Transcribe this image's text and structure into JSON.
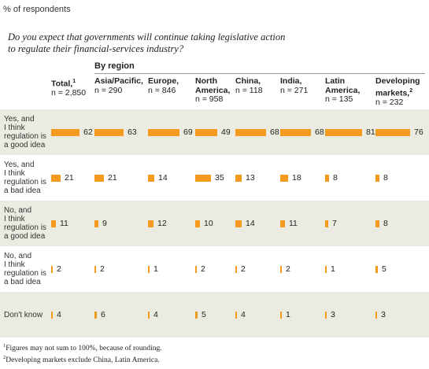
{
  "unit_label": "% of respondents",
  "question": "Do you expect that governments will continue taking legislative action to regulate their financial-services industry?",
  "region_header": "By region",
  "colors": {
    "bar": "#f39a1f",
    "band": "#ecebe1"
  },
  "footnotes": [
    {
      "mark": "1",
      "text": "Figures may not sum to 100%, because of rounding."
    },
    {
      "mark": "2",
      "text": "Developing markets exclude China, Latin America."
    }
  ],
  "chart_data": {
    "type": "bar",
    "columns": [
      {
        "name": "Total,",
        "mark": "1",
        "line2": "",
        "n": "n = 2,850"
      },
      {
        "name": "Asia/Pacific,",
        "mark": "",
        "line2": "",
        "n": "n = 290"
      },
      {
        "name": "Europe,",
        "mark": "",
        "line2": "",
        "n": "n = 846"
      },
      {
        "name": "North",
        "mark": "",
        "line2": "America,",
        "n": "n = 958"
      },
      {
        "name": "China,",
        "mark": "",
        "line2": "",
        "n": "n = 118"
      },
      {
        "name": "India,",
        "mark": "",
        "line2": "",
        "n": "n = 271"
      },
      {
        "name": "Latin",
        "mark": "",
        "line2": "America,",
        "n": "n = 135"
      },
      {
        "name": "Developing",
        "mark": "",
        "line2": "markets,",
        "mark2": "2",
        "n": "n = 232"
      }
    ],
    "rows": [
      {
        "label": [
          "Yes, and",
          "I think",
          "regulation is",
          "a good idea"
        ],
        "values": [
          62,
          63,
          69,
          49,
          68,
          68,
          81,
          76
        ]
      },
      {
        "label": [
          "Yes, and",
          "I think",
          "regulation is",
          "a bad idea"
        ],
        "values": [
          21,
          21,
          14,
          35,
          13,
          18,
          8,
          8
        ]
      },
      {
        "label": [
          "No, and",
          "I think",
          "regulation is",
          "a good idea"
        ],
        "values": [
          11,
          9,
          12,
          10,
          14,
          11,
          7,
          8
        ]
      },
      {
        "label": [
          "No, and",
          "I think",
          "regulation is",
          "a bad idea"
        ],
        "values": [
          2,
          2,
          1,
          2,
          2,
          2,
          1,
          5
        ]
      },
      {
        "label": [
          "Don't know"
        ],
        "values": [
          4,
          6,
          4,
          5,
          4,
          1,
          3,
          3
        ]
      }
    ]
  }
}
